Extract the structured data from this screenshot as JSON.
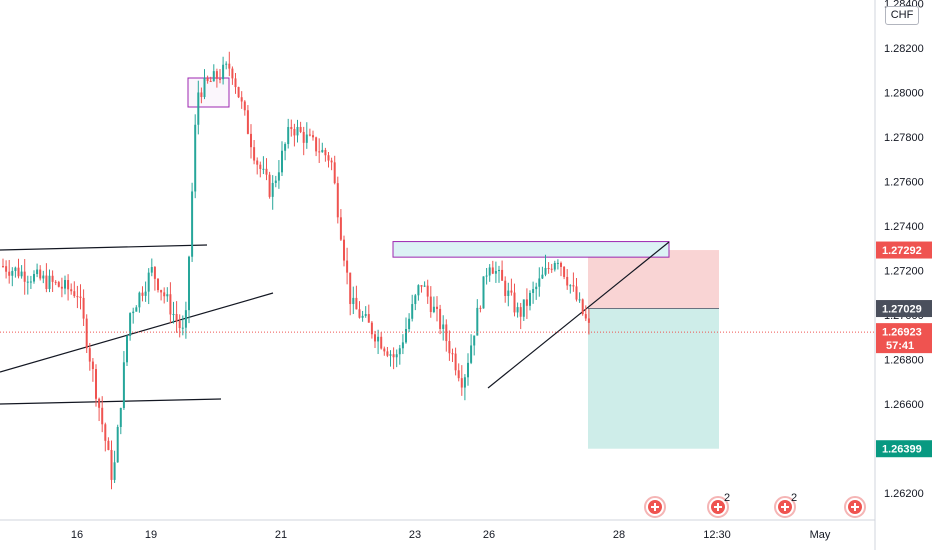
{
  "currency_label": "CHF",
  "countdown": "57:41",
  "event_icon_counts": [
    "2",
    "2"
  ],
  "colors": {
    "up": "#26a69a",
    "down": "#ef5350",
    "stop_zone": "#f7c9c9",
    "target_zone": "#c9ebe7",
    "resistance_fill": "#dcf2f5",
    "box_stroke": "#9c27b0",
    "stop_badge": "#ef5350",
    "entry_badge": "#4a4f5c",
    "target_badge": "#089981",
    "current_badge": "#ef5350"
  },
  "chart_data": {
    "type": "candlestick",
    "y_ticks": [
      "1.26200",
      "1.26400",
      "1.26600",
      "1.26800",
      "1.27000",
      "1.27200",
      "1.27400",
      "1.27600",
      "1.27800",
      "1.28000",
      "1.28200",
      "1.28400"
    ],
    "y_range": [
      1.2605,
      1.2845
    ],
    "x_ticks": [
      "16",
      "19",
      "21",
      "23",
      "26",
      "28",
      "12:30",
      "May"
    ],
    "price_badges": [
      {
        "label": "1.27292",
        "value": 1.27292,
        "role": "stop"
      },
      {
        "label": "1.27029",
        "value": 1.27029,
        "role": "entry"
      },
      {
        "label": "1.26923",
        "value": 1.26923,
        "role": "current"
      },
      {
        "label": "1.26399",
        "value": 1.26399,
        "role": "target"
      }
    ],
    "current_price": 1.26923,
    "short_position": {
      "stop": 1.27292,
      "entry": 1.27029,
      "target": 1.26399
    },
    "resistance_zone": [
      1.2726,
      1.2733
    ],
    "key_points": [
      {
        "date": "15",
        "price": 1.2722
      },
      {
        "date": "16",
        "price": 1.271
      },
      {
        "date": "17",
        "price": 1.2625
      },
      {
        "date": "18",
        "price": 1.27
      },
      {
        "date": "19",
        "price": 1.272
      },
      {
        "date": "19",
        "price": 1.269
      },
      {
        "date": "20",
        "price": 1.28
      },
      {
        "date": "20",
        "price": 1.2812
      },
      {
        "date": "21",
        "price": 1.277
      },
      {
        "date": "21",
        "price": 1.2755
      },
      {
        "date": "22",
        "price": 1.2785
      },
      {
        "date": "22",
        "price": 1.277
      },
      {
        "date": "23",
        "price": 1.2705
      },
      {
        "date": "23",
        "price": 1.268
      },
      {
        "date": "24",
        "price": 1.2715
      },
      {
        "date": "24",
        "price": 1.2695
      },
      {
        "date": "26",
        "price": 1.267
      },
      {
        "date": "26",
        "price": 1.2725
      },
      {
        "date": "27",
        "price": 1.27
      },
      {
        "date": "27",
        "price": 1.2727
      },
      {
        "date": "28",
        "price": 1.2692
      }
    ]
  }
}
